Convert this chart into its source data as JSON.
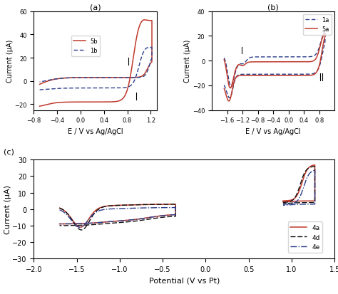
{
  "panel_a": {
    "title": "(a)",
    "xlabel": "E / V vs Ag/AgCl",
    "ylabel": "Current (μA)",
    "xlim": [
      -0.8,
      1.3
    ],
    "ylim": [
      -25,
      60
    ],
    "xticks": [
      -0.8,
      -0.4,
      0.0,
      0.4,
      0.8,
      1.2
    ],
    "yticks": [
      -20,
      0,
      20,
      40,
      60
    ],
    "legend": [
      {
        "label": "5b",
        "color": "#c0392b",
        "ls": "solid"
      },
      {
        "label": "1b",
        "color": "#2c3e8c",
        "ls": "dashed"
      }
    ]
  },
  "panel_b": {
    "title": "(b)",
    "xlabel": "E / V vs Ag/AgCl",
    "ylabel": "Current (μA)",
    "xlim": [
      -2.0,
      1.2
    ],
    "ylim": [
      -40,
      40
    ],
    "xticks": [
      -1.6,
      -1.2,
      -0.8,
      -0.4,
      0.0,
      0.4,
      0.8
    ],
    "yticks": [
      -40,
      -20,
      0,
      20,
      40
    ],
    "legend": [
      {
        "label": "1a",
        "color": "#2c3e8c",
        "ls": "dashed"
      },
      {
        "label": "5a",
        "color": "#c0392b",
        "ls": "solid"
      }
    ]
  },
  "panel_c": {
    "title": "(c)",
    "xlabel": "Potential (V vs Pt)",
    "ylabel": "Current (μA)",
    "xlim": [
      -2.0,
      1.5
    ],
    "ylim": [
      -30,
      30
    ],
    "xticks": [
      -2.0,
      -1.5,
      -1.0,
      -0.5,
      0.0,
      0.5,
      1.0,
      1.5
    ],
    "yticks": [
      -30,
      -20,
      -10,
      0,
      10,
      20,
      30
    ],
    "legend": [
      {
        "label": "4a",
        "color": "#c0392b",
        "ls": "solid"
      },
      {
        "label": "4d",
        "color": "#111111",
        "ls": "dashed"
      },
      {
        "label": "4e",
        "color": "#2c3e8c",
        "ls": "dashdot"
      }
    ]
  },
  "background": "#ffffff"
}
